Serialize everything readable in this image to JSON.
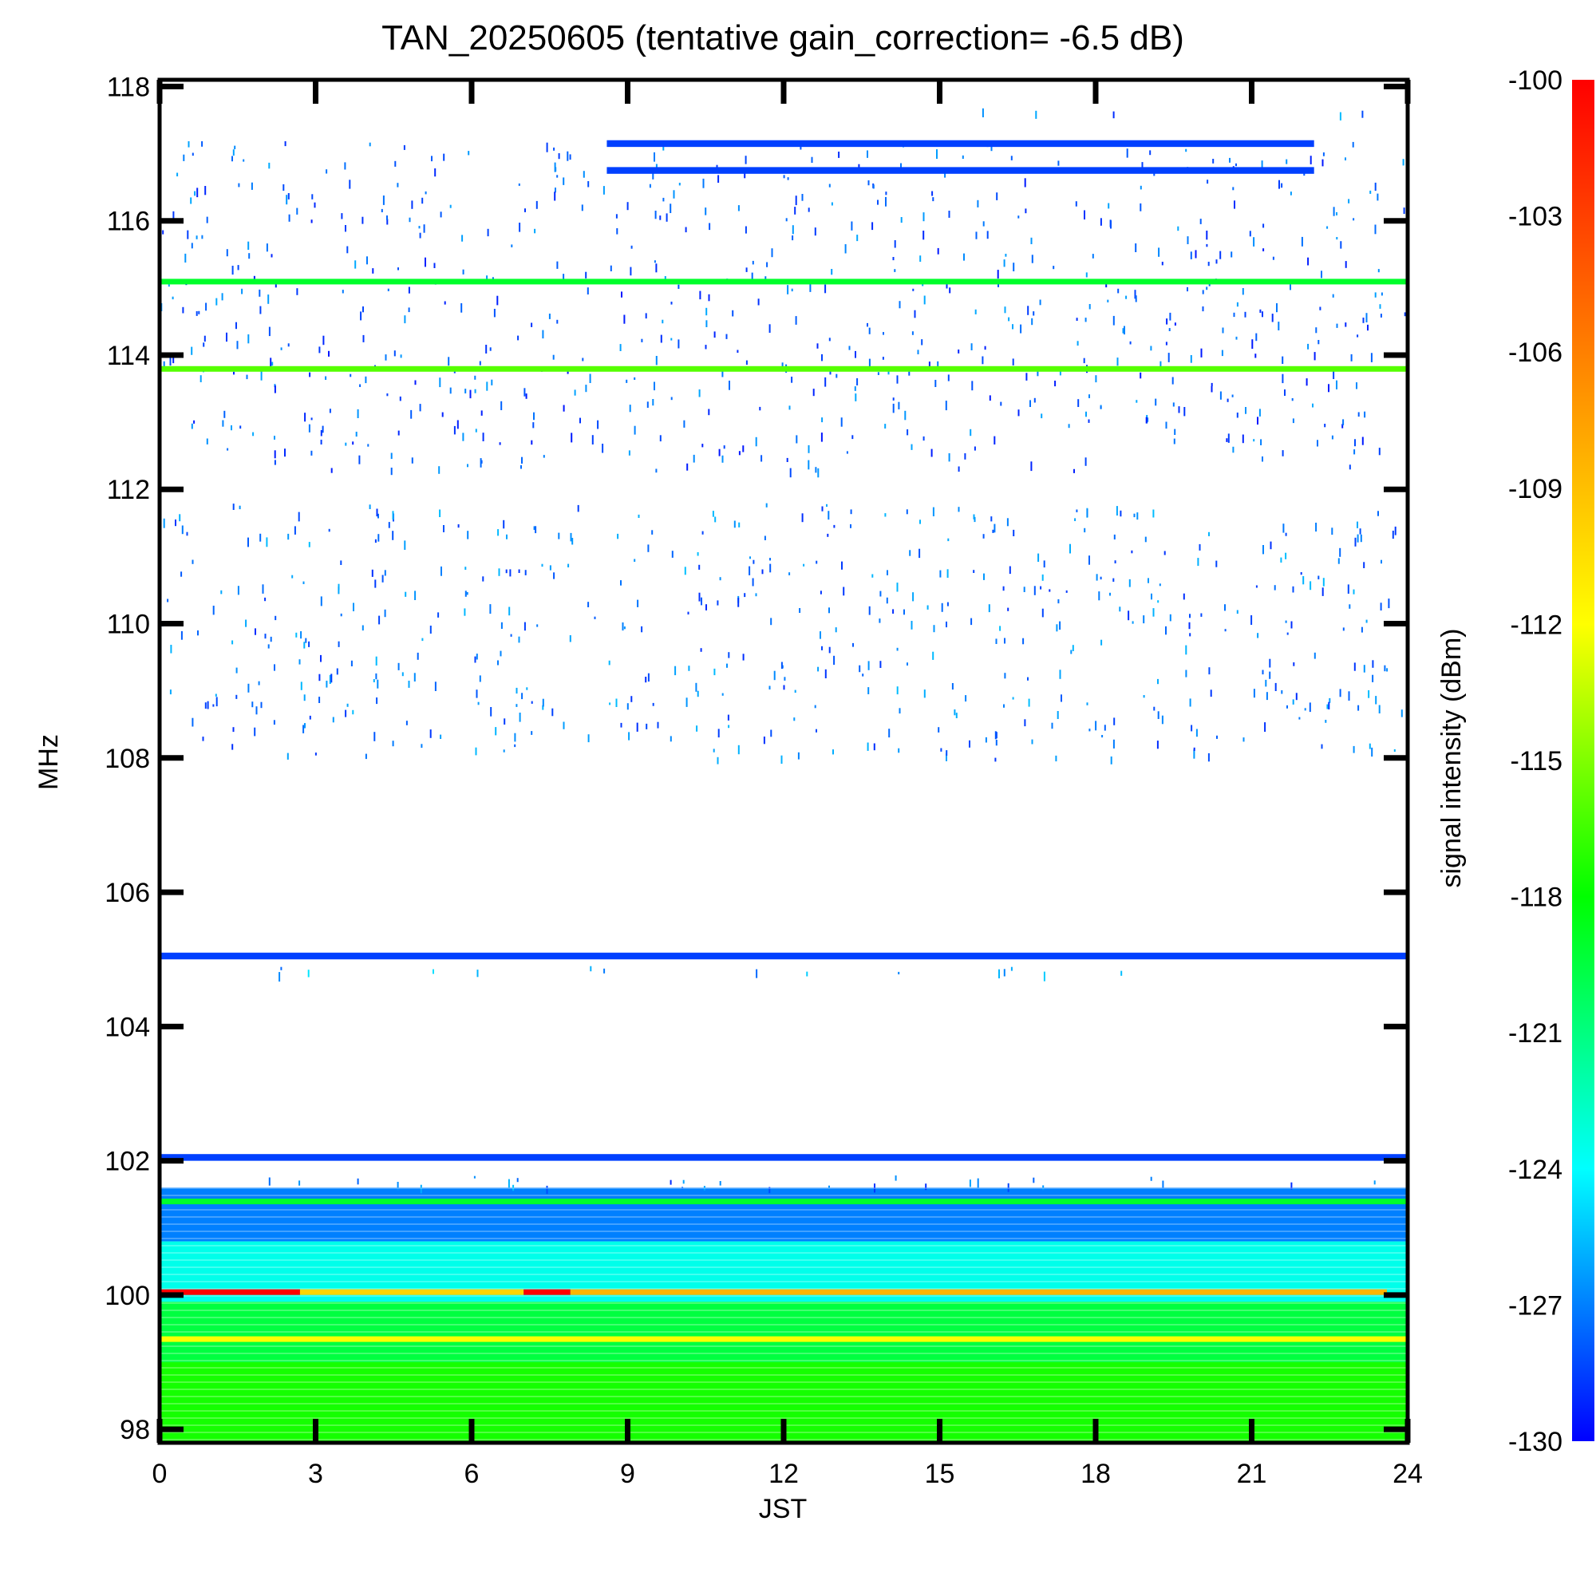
{
  "chart_data": {
    "type": "heatmap",
    "title": "TAN_20250605 (tentative gain_correction= -6.5 dB)",
    "xlabel": "JST",
    "ylabel": "MHz",
    "xlim": [
      0,
      24
    ],
    "ylim": [
      97.8,
      118.1
    ],
    "xticks": [
      "0",
      "3",
      "6",
      "9",
      "12",
      "15",
      "18",
      "21",
      "24"
    ],
    "yticks": [
      "98",
      "100",
      "102",
      "104",
      "106",
      "108",
      "110",
      "112",
      "114",
      "116",
      "118"
    ],
    "colorbar": {
      "label": "signal intensity (dBm)",
      "range": [
        -130,
        -100
      ],
      "ticks": [
        "-100",
        "-103",
        "-106",
        "-109",
        "-112",
        "-115",
        "-118",
        "-121",
        "-124",
        "-127",
        "-130"
      ],
      "colors": [
        "#0000ff",
        "#00ffff",
        "#00ff00",
        "#ffff00",
        "#ff8000",
        "#ff0000"
      ]
    },
    "bands": [
      {
        "f_low": 97.8,
        "f_high": 99.0,
        "t_start": 0,
        "t_end": 24,
        "dbm": -117.5,
        "pattern": "solid"
      },
      {
        "f_low": 99.0,
        "f_high": 99.9,
        "t_start": 0,
        "t_end": 24,
        "dbm": -119.5,
        "pattern": "solid"
      },
      {
        "f_low": 99.9,
        "f_high": 100.8,
        "t_start": 0,
        "t_end": 24,
        "dbm": -123.5,
        "pattern": "solid"
      },
      {
        "f_low": 100.8,
        "f_high": 101.6,
        "t_start": 0,
        "t_end": 24,
        "dbm": -127.0,
        "pattern": "solid"
      },
      {
        "f_low": 101.6,
        "f_high": 101.8,
        "t_start": 0,
        "t_end": 24,
        "dbm": -129.0,
        "pattern": "speckle"
      },
      {
        "f_low": 102.0,
        "f_high": 102.1,
        "t_start": 0,
        "t_end": 24,
        "dbm": -128.5,
        "pattern": "solid"
      },
      {
        "f_low": 104.8,
        "f_high": 104.9,
        "t_start": 0,
        "t_end": 24,
        "dbm": -128.0,
        "pattern": "speckle"
      },
      {
        "f_low": 105.0,
        "f_high": 105.1,
        "t_start": 0,
        "t_end": 24,
        "dbm": -128.5,
        "pattern": "solid"
      },
      {
        "f_low": 108.0,
        "f_high": 111.8,
        "t_start": 0,
        "t_end": 24,
        "dbm": -129.0,
        "pattern": "speckle"
      },
      {
        "f_low": 112.3,
        "f_high": 117.2,
        "t_start": 0,
        "t_end": 24,
        "dbm": -129.5,
        "pattern": "speckle"
      },
      {
        "f_low": 117.1,
        "f_high": 117.2,
        "t_start": 8.6,
        "t_end": 22.2,
        "dbm": -128.5,
        "pattern": "solid"
      },
      {
        "f_low": 116.7,
        "f_high": 116.8,
        "t_start": 8.6,
        "t_end": 22.2,
        "dbm": -128.5,
        "pattern": "solid"
      },
      {
        "f_low": 117.6,
        "f_high": 117.7,
        "t_start": 15.5,
        "t_end": 23.6,
        "dbm": -129.0,
        "pattern": "speckle"
      }
    ],
    "lines": [
      {
        "freq": 115.1,
        "t_start": 0,
        "t_end": 24,
        "dbm": -119.0
      },
      {
        "freq": 113.8,
        "t_start": 0,
        "t_end": 24,
        "dbm": -116.0
      },
      {
        "freq": 101.4,
        "t_start": 0,
        "t_end": 24,
        "dbm": -119.0
      },
      {
        "freq": 99.35,
        "t_start": 0,
        "t_end": 24,
        "dbm": -112.0
      },
      {
        "freq": 100.05,
        "t_start": 0,
        "t_end": 2.7,
        "dbm": -100.0
      },
      {
        "freq": 100.05,
        "t_start": 2.7,
        "t_end": 7.0,
        "dbm": -110.0
      },
      {
        "freq": 100.05,
        "t_start": 7.0,
        "t_end": 7.9,
        "dbm": -100.0
      },
      {
        "freq": 100.05,
        "t_start": 7.9,
        "t_end": 23.6,
        "dbm": -108.5
      }
    ]
  }
}
